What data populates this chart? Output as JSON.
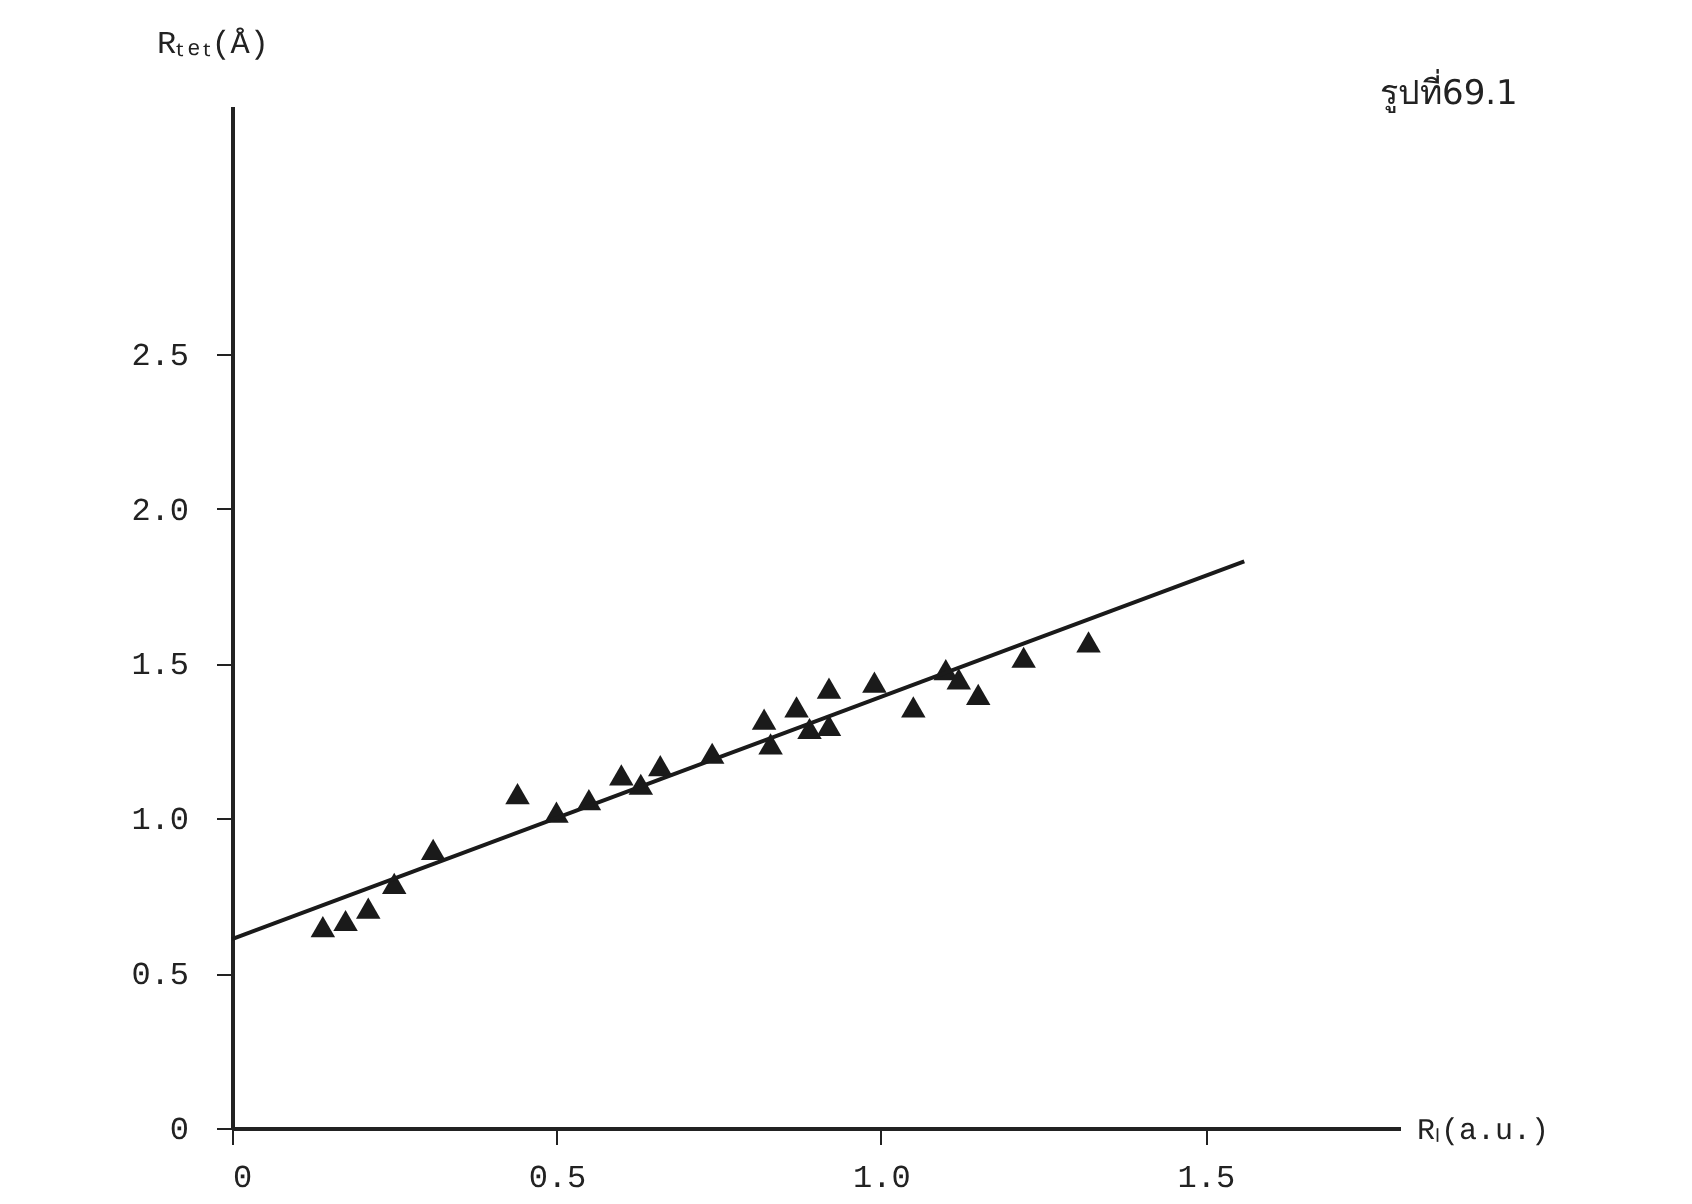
{
  "chart_data": {
    "type": "scatter",
    "xlabel": "Rₗ(a.u.)",
    "ylabel": "Rₜₑₜ(Å)",
    "annotations": [
      "รูปที่69.1"
    ],
    "xlim": [
      0,
      1.8
    ],
    "ylim": [
      0,
      3.3
    ],
    "xticks": [
      0,
      0.5,
      {
        "value": 1,
        "label": "1.0"
      },
      1.5
    ],
    "yticks": [
      0,
      0.5,
      {
        "value": 1,
        "label": "1.0"
      },
      1.5,
      {
        "value": 2,
        "label": "2.0"
      },
      2.5
    ],
    "grid": false,
    "legend": false,
    "series": [
      {
        "marker": "triangle",
        "color": "#1a1a1a",
        "x": [
          0.14,
          0.175,
          0.21,
          0.25,
          0.31,
          0.44,
          0.5,
          0.55,
          0.6,
          0.63,
          0.66,
          0.74,
          0.82,
          0.83,
          0.87,
          0.89,
          0.92,
          0.92,
          0.99,
          1.05,
          1.1,
          1.12,
          1.15,
          1.22,
          1.32
        ],
        "values": [
          0.65,
          0.67,
          0.71,
          0.79,
          0.9,
          1.08,
          1.02,
          1.06,
          1.14,
          1.11,
          1.17,
          1.21,
          1.32,
          1.24,
          1.36,
          1.29,
          1.42,
          1.3,
          1.44,
          1.36,
          1.48,
          1.45,
          1.4,
          1.52,
          1.57
        ]
      },
      {
        "type": "line",
        "marker": "none",
        "line_style": "solid",
        "color": "#1a1a1a",
        "x": [
          0,
          1.56
        ],
        "values": [
          0.61,
          1.83
        ]
      }
    ]
  }
}
